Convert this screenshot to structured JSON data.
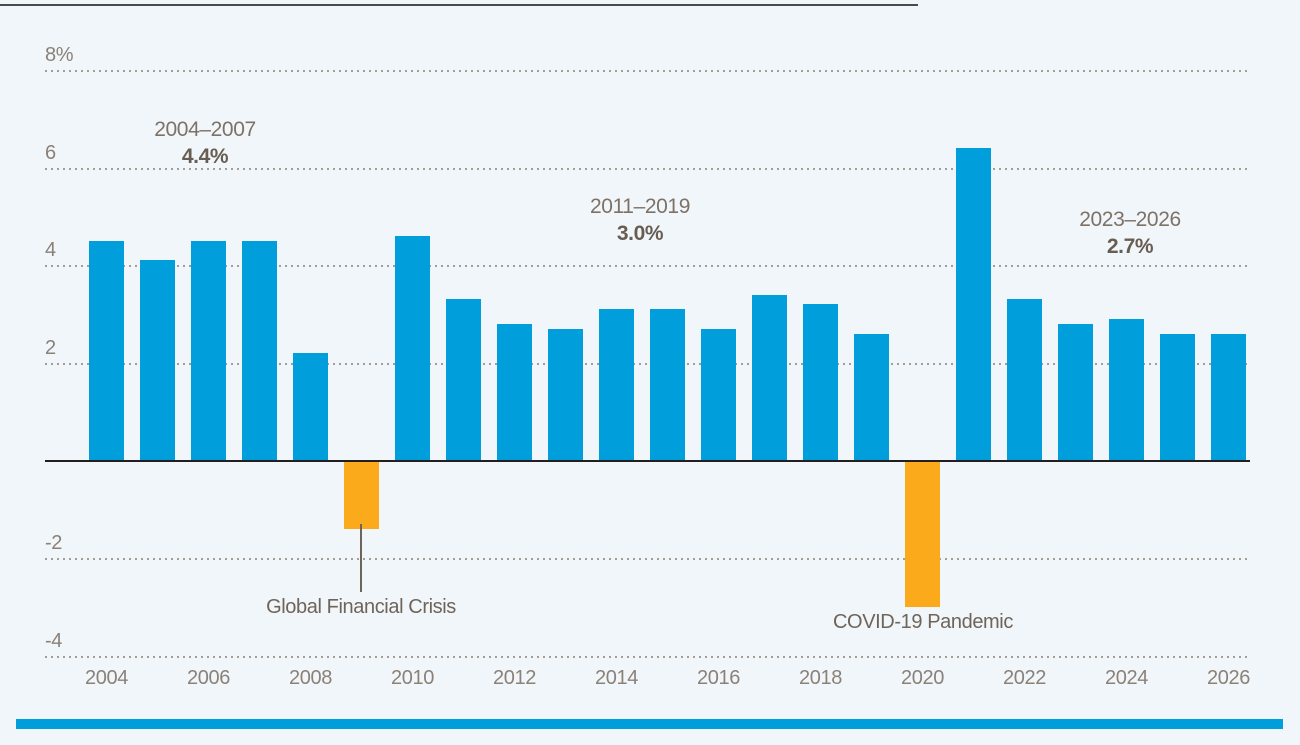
{
  "page": {
    "background": "#f1f6fa"
  },
  "chart_data": {
    "type": "bar",
    "title": "",
    "xlabel": "",
    "ylabel": "",
    "unit": "percent",
    "x": [
      2004,
      2005,
      2006,
      2007,
      2008,
      2009,
      2010,
      2011,
      2012,
      2013,
      2014,
      2015,
      2016,
      2017,
      2018,
      2019,
      2020,
      2021,
      2022,
      2023,
      2024,
      2025,
      2026
    ],
    "values": [
      4.5,
      4.1,
      4.5,
      4.5,
      2.2,
      -1.4,
      4.6,
      3.3,
      2.8,
      2.7,
      3.1,
      3.1,
      2.7,
      3.4,
      3.2,
      2.6,
      -3.0,
      6.4,
      3.3,
      2.8,
      2.9,
      2.6,
      2.6
    ],
    "negative_years": [
      2009,
      2020
    ],
    "yticks": [
      {
        "value": 8,
        "label": "8%"
      },
      {
        "value": 6,
        "label": "6"
      },
      {
        "value": 4,
        "label": "4"
      },
      {
        "value": 2,
        "label": "2"
      },
      {
        "value": -2,
        "label": "-2"
      },
      {
        "value": -4,
        "label": "-4"
      }
    ],
    "xtick_labels": [
      "2004",
      "2006",
      "2008",
      "2010",
      "2012",
      "2014",
      "2016",
      "2018",
      "2020",
      "2022",
      "2024",
      "2026"
    ],
    "ylim": [
      -4.9,
      8.6
    ],
    "grid": "horizontal-dotted",
    "legend": "none",
    "annotations": [
      {
        "range": "2004–2007",
        "average": "4.4%"
      },
      {
        "range": "2011–2019",
        "average": "3.0%"
      },
      {
        "range": "2023–2026",
        "average": "2.7%"
      }
    ],
    "callouts": [
      {
        "year": 2009,
        "label": "Global Financial Crisis"
      },
      {
        "year": 2020,
        "label": "COVID-19 Pandemic"
      }
    ]
  },
  "colors": {
    "background": "#f1f6fa",
    "bar_blue": "#009fdc",
    "bar_orange": "#fbaa1b",
    "axis_line": "#231f20",
    "grid_dot": "#a39c93",
    "tick_label": "#8b8177",
    "annotation_range": "#7e7267",
    "annotation_average": "#685d52",
    "callout_text": "#6f6459",
    "leader_line": "#6f6459",
    "top_rule": "#4a4a48",
    "bottom_bar": "#009fdc"
  }
}
